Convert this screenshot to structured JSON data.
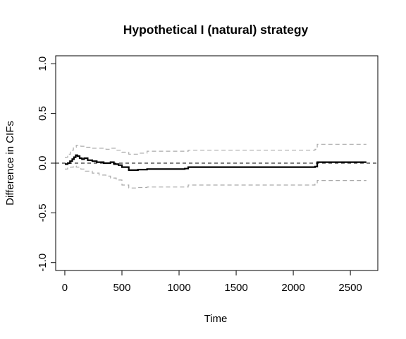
{
  "chart_data": {
    "type": "line",
    "title": "Hypothetical I (natural) strategy",
    "xlabel": "Time",
    "ylabel": "Difference in CIFs",
    "xlim": [
      -80,
      2740
    ],
    "ylim": [
      -1.08,
      1.08
    ],
    "x_ticks": [
      0,
      500,
      1000,
      1500,
      2000,
      2500
    ],
    "y_ticks": [
      -1.0,
      -0.5,
      0.0,
      0.5,
      1.0
    ],
    "x_tick_labels": [
      "0",
      "500",
      "1000",
      "1500",
      "2000",
      "2500"
    ],
    "y_tick_labels": [
      "-1.0",
      "-0.5",
      "0.0",
      "0.5",
      "1.0"
    ],
    "reference_line": {
      "y": 0,
      "style": "dashed",
      "color": "#000000"
    },
    "grid": false,
    "legend": "none",
    "series": [
      {
        "role": "estimate",
        "color": "#000000",
        "style": "solid-step",
        "x": [
          0,
          25,
          45,
          65,
          80,
          95,
          110,
          130,
          150,
          170,
          200,
          240,
          280,
          340,
          400,
          430,
          470,
          500,
          560,
          640,
          720,
          1050,
          1080,
          2190,
          2210,
          2640
        ],
        "y": [
          -0.01,
          0.0,
          0.02,
          0.04,
          0.06,
          0.08,
          0.07,
          0.05,
          0.04,
          0.05,
          0.03,
          0.02,
          0.01,
          0.0,
          0.01,
          -0.01,
          -0.02,
          -0.04,
          -0.07,
          -0.065,
          -0.06,
          -0.055,
          -0.04,
          -0.035,
          0.01,
          0.01
        ]
      },
      {
        "role": "upper-bound",
        "color": "#aaaaaa",
        "style": "dashed-step",
        "x": [
          0,
          25,
          50,
          75,
          100,
          140,
          180,
          240,
          300,
          360,
          400,
          450,
          500,
          560,
          640,
          720,
          1080,
          2190,
          2210,
          2640
        ],
        "y": [
          0.06,
          0.09,
          0.13,
          0.16,
          0.18,
          0.17,
          0.16,
          0.15,
          0.15,
          0.14,
          0.15,
          0.13,
          0.11,
          0.09,
          0.1,
          0.12,
          0.13,
          0.14,
          0.19,
          0.19
        ]
      },
      {
        "role": "lower-bound",
        "color": "#aaaaaa",
        "style": "dashed-step",
        "x": [
          0,
          25,
          50,
          75,
          100,
          140,
          180,
          240,
          300,
          360,
          400,
          450,
          500,
          560,
          640,
          720,
          1080,
          2190,
          2210,
          2640
        ],
        "y": [
          -0.06,
          -0.05,
          -0.04,
          -0.03,
          -0.04,
          -0.06,
          -0.08,
          -0.1,
          -0.12,
          -0.13,
          -0.15,
          -0.17,
          -0.22,
          -0.25,
          -0.245,
          -0.24,
          -0.22,
          -0.21,
          -0.175,
          -0.175
        ]
      }
    ]
  }
}
